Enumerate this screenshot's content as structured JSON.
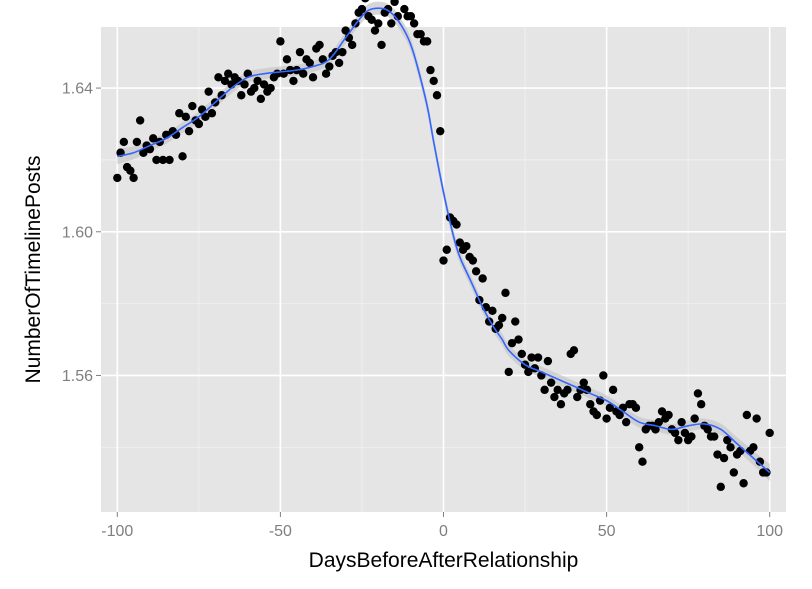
{
  "chart_data": {
    "type": "scatter",
    "title": "",
    "xlabel": "DaysBeforeAfterRelationship",
    "ylabel": "NumberOfTimelinePosts",
    "xlim": [
      -105,
      105
    ],
    "ylim": [
      1.522,
      1.657
    ],
    "x_ticks": [
      -100,
      -50,
      0,
      50,
      100
    ],
    "y_ticks": [
      1.56,
      1.6,
      1.64
    ],
    "x_tick_labels": [
      "-100",
      "-50",
      "0",
      "50",
      "100"
    ],
    "y_tick_labels": [
      "1.56",
      "1.60",
      "1.64"
    ],
    "grid": true,
    "legend": "none",
    "colors": {
      "panel": "#e5e5e5",
      "grid_major": "#ffffff",
      "grid_minor": "#f2f2f2",
      "points": "#000000",
      "smooth_line": "#3366ff",
      "ribbon": "#cccccc"
    },
    "points": [
      [
        -100,
        1.615
      ],
      [
        -99,
        1.622
      ],
      [
        -98,
        1.625
      ],
      [
        -97,
        1.618
      ],
      [
        -96,
        1.617
      ],
      [
        -95,
        1.615
      ],
      [
        -94,
        1.625
      ],
      [
        -93,
        1.631
      ],
      [
        -92,
        1.622
      ],
      [
        -91,
        1.624
      ],
      [
        -90,
        1.623
      ],
      [
        -89,
        1.626
      ],
      [
        -88,
        1.62
      ],
      [
        -87,
        1.625
      ],
      [
        -86,
        1.62
      ],
      [
        -85,
        1.627
      ],
      [
        -84,
        1.62
      ],
      [
        -83,
        1.628
      ],
      [
        -82,
        1.627
      ],
      [
        -81,
        1.633
      ],
      [
        -80,
        1.621
      ],
      [
        -79,
        1.632
      ],
      [
        -78,
        1.628
      ],
      [
        -77,
        1.635
      ],
      [
        -76,
        1.631
      ],
      [
        -75,
        1.63
      ],
      [
        -74,
        1.634
      ],
      [
        -73,
        1.632
      ],
      [
        -72,
        1.639
      ],
      [
        -71,
        1.633
      ],
      [
        -70,
        1.636
      ],
      [
        -69,
        1.643
      ],
      [
        -68,
        1.638
      ],
      [
        -67,
        1.642
      ],
      [
        -66,
        1.644
      ],
      [
        -65,
        1.641
      ],
      [
        -64,
        1.643
      ],
      [
        -63,
        1.642
      ],
      [
        -62,
        1.638
      ],
      [
        -61,
        1.641
      ],
      [
        -60,
        1.644
      ],
      [
        -59,
        1.639
      ],
      [
        -58,
        1.64
      ],
      [
        -57,
        1.642
      ],
      [
        -56,
        1.637
      ],
      [
        -55,
        1.641
      ],
      [
        -54,
        1.639
      ],
      [
        -53,
        1.64
      ],
      [
        -52,
        1.643
      ],
      [
        -51,
        1.644
      ],
      [
        -50,
        1.653
      ],
      [
        -49,
        1.644
      ],
      [
        -48,
        1.648
      ],
      [
        -47,
        1.645
      ],
      [
        -46,
        1.642
      ],
      [
        -45,
        1.645
      ],
      [
        -44,
        1.65
      ],
      [
        -43,
        1.644
      ],
      [
        -42,
        1.648
      ],
      [
        -41,
        1.647
      ],
      [
        -40,
        1.643
      ],
      [
        -39,
        1.651
      ],
      [
        -38,
        1.652
      ],
      [
        -37,
        1.648
      ],
      [
        -36,
        1.644
      ],
      [
        -35,
        1.646
      ],
      [
        -34,
        1.649
      ],
      [
        -33,
        1.65
      ],
      [
        -32,
        1.647
      ],
      [
        -31,
        1.65
      ],
      [
        -30,
        1.656
      ],
      [
        -29,
        1.654
      ],
      [
        -28,
        1.652
      ],
      [
        -27,
        1.658
      ],
      [
        -26,
        1.661
      ],
      [
        -25,
        1.662
      ],
      [
        -24,
        1.665
      ],
      [
        -23,
        1.66
      ],
      [
        -22,
        1.659
      ],
      [
        -21,
        1.656
      ],
      [
        -20,
        1.658
      ],
      [
        -19,
        1.652
      ],
      [
        -18,
        1.661
      ],
      [
        -17,
        1.662
      ],
      [
        -16,
        1.658
      ],
      [
        -15,
        1.664
      ],
      [
        -14,
        1.66
      ],
      [
        -13,
        1.668
      ],
      [
        -12,
        1.662
      ],
      [
        -11,
        1.66
      ],
      [
        -10,
        1.66
      ],
      [
        -9,
        1.658
      ],
      [
        -8,
        1.655
      ],
      [
        -7,
        1.655
      ],
      [
        -6,
        1.653
      ],
      [
        -5,
        1.653
      ],
      [
        -4,
        1.645
      ],
      [
        -3,
        1.642
      ],
      [
        -2,
        1.638
      ],
      [
        -1,
        1.628
      ],
      [
        0,
        1.592
      ],
      [
        1,
        1.595
      ],
      [
        2,
        1.604
      ],
      [
        3,
        1.603
      ],
      [
        4,
        1.602
      ],
      [
        5,
        1.597
      ],
      [
        6,
        1.595
      ],
      [
        7,
        1.596
      ],
      [
        8,
        1.593
      ],
      [
        9,
        1.592
      ],
      [
        10,
        1.589
      ],
      [
        11,
        1.581
      ],
      [
        12,
        1.587
      ],
      [
        13,
        1.579
      ],
      [
        14,
        1.575
      ],
      [
        15,
        1.578
      ],
      [
        16,
        1.573
      ],
      [
        17,
        1.574
      ],
      [
        18,
        1.576
      ],
      [
        19,
        1.583
      ],
      [
        20,
        1.561
      ],
      [
        21,
        1.569
      ],
      [
        22,
        1.575
      ],
      [
        23,
        1.57
      ],
      [
        24,
        1.566
      ],
      [
        25,
        1.563
      ],
      [
        26,
        1.561
      ],
      [
        27,
        1.565
      ],
      [
        28,
        1.562
      ],
      [
        29,
        1.565
      ],
      [
        30,
        1.56
      ],
      [
        31,
        1.556
      ],
      [
        32,
        1.564
      ],
      [
        33,
        1.558
      ],
      [
        34,
        1.554
      ],
      [
        35,
        1.556
      ],
      [
        36,
        1.552
      ],
      [
        37,
        1.555
      ],
      [
        38,
        1.556
      ],
      [
        39,
        1.566
      ],
      [
        40,
        1.567
      ],
      [
        41,
        1.554
      ],
      [
        42,
        1.556
      ],
      [
        43,
        1.558
      ],
      [
        44,
        1.556
      ],
      [
        45,
        1.552
      ],
      [
        46,
        1.55
      ],
      [
        47,
        1.549
      ],
      [
        48,
        1.553
      ],
      [
        49,
        1.56
      ],
      [
        50,
        1.548
      ],
      [
        51,
        1.551
      ],
      [
        52,
        1.556
      ],
      [
        53,
        1.55
      ],
      [
        54,
        1.549
      ],
      [
        55,
        1.551
      ],
      [
        56,
        1.547
      ],
      [
        57,
        1.552
      ],
      [
        58,
        1.552
      ],
      [
        59,
        1.551
      ],
      [
        60,
        1.54
      ],
      [
        61,
        1.536
      ],
      [
        62,
        1.545
      ],
      [
        63,
        1.546
      ],
      [
        64,
        1.546
      ],
      [
        65,
        1.545
      ],
      [
        66,
        1.547
      ],
      [
        67,
        1.55
      ],
      [
        68,
        1.548
      ],
      [
        69,
        1.549
      ],
      [
        70,
        1.545
      ],
      [
        71,
        1.544
      ],
      [
        72,
        1.542
      ],
      [
        73,
        1.547
      ],
      [
        74,
        1.544
      ],
      [
        75,
        1.542
      ],
      [
        76,
        1.543
      ],
      [
        77,
        1.548
      ],
      [
        78,
        1.555
      ],
      [
        79,
        1.552
      ],
      [
        80,
        1.546
      ],
      [
        81,
        1.545
      ],
      [
        82,
        1.543
      ],
      [
        83,
        1.543
      ],
      [
        84,
        1.538
      ],
      [
        85,
        1.529
      ],
      [
        86,
        1.537
      ],
      [
        87,
        1.542
      ],
      [
        88,
        1.54
      ],
      [
        89,
        1.533
      ],
      [
        90,
        1.538
      ],
      [
        91,
        1.539
      ],
      [
        92,
        1.53
      ],
      [
        93,
        1.549
      ],
      [
        94,
        1.539
      ],
      [
        95,
        1.54
      ],
      [
        96,
        1.548
      ],
      [
        97,
        1.536
      ],
      [
        98,
        1.533
      ],
      [
        99,
        1.533
      ],
      [
        100,
        1.544
      ]
    ],
    "smooth": {
      "method": "loess",
      "x": [
        -100,
        -95,
        -90,
        -85,
        -80,
        -75,
        -70,
        -65,
        -60,
        -55,
        -50,
        -45,
        -40,
        -35,
        -30,
        -25,
        -22,
        -18,
        -15,
        -12,
        -10,
        -8,
        -5,
        -3,
        0,
        3,
        5,
        8,
        10,
        12,
        15,
        18,
        20,
        25,
        30,
        35,
        40,
        45,
        50,
        55,
        60,
        65,
        70,
        75,
        80,
        85,
        90,
        95,
        100
      ],
      "y": [
        1.621,
        1.622,
        1.624,
        1.626,
        1.629,
        1.632,
        1.636,
        1.64,
        1.643,
        1.644,
        1.6445,
        1.645,
        1.646,
        1.648,
        1.654,
        1.66,
        1.662,
        1.662,
        1.66,
        1.656,
        1.652,
        1.646,
        1.635,
        1.625,
        1.611,
        1.599,
        1.593,
        1.587,
        1.583,
        1.579,
        1.574,
        1.57,
        1.567,
        1.563,
        1.561,
        1.559,
        1.557,
        1.555,
        1.553,
        1.55,
        1.547,
        1.546,
        1.545,
        1.546,
        1.5465,
        1.545,
        1.541,
        1.537,
        1.533
      ],
      "se": [
        0.0022,
        0.0018,
        0.0016,
        0.0015,
        0.0015,
        0.0015,
        0.0015,
        0.0015,
        0.0015,
        0.0015,
        0.0015,
        0.0015,
        0.0015,
        0.0015,
        0.0016,
        0.0017,
        0.0018,
        0.0018,
        0.0018,
        0.0018,
        0.0018,
        0.0018,
        0.0018,
        0.0018,
        0.0018,
        0.0018,
        0.0017,
        0.0016,
        0.0016,
        0.0016,
        0.0016,
        0.0016,
        0.0016,
        0.0015,
        0.0015,
        0.0015,
        0.0015,
        0.0015,
        0.0015,
        0.0015,
        0.0015,
        0.0015,
        0.0015,
        0.0015,
        0.0015,
        0.0016,
        0.0018,
        0.002,
        0.0024
      ]
    }
  }
}
